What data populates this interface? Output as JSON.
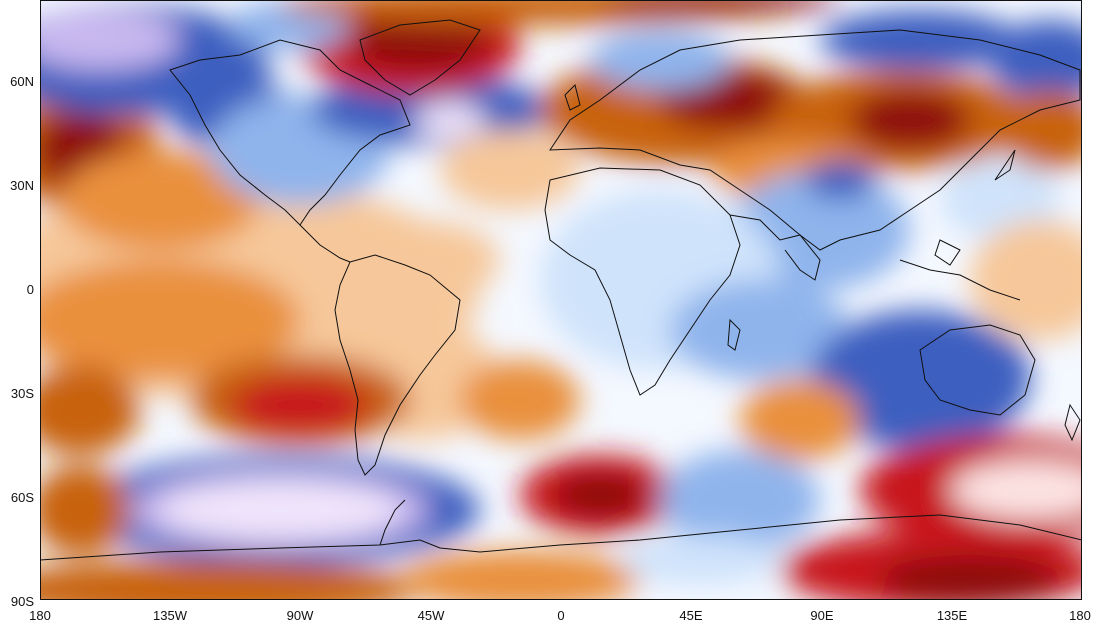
{
  "map": {
    "projection": "equirectangular",
    "lat_labels": [
      "60N",
      "30N",
      "0",
      "30S",
      "60S",
      "90S"
    ],
    "lon_labels": [
      "180",
      "135W",
      "90W",
      "45W",
      "0",
      "45E",
      "90E",
      "135E",
      "180"
    ],
    "colors": {
      "ocean_neutral": "#f4f8ff",
      "light_blue": "#cfe3fb",
      "blue": "#8fb4ec",
      "deep_blue": "#3d5fc0",
      "lavender": "#c8b8f0",
      "pale_violet": "#efe4fb",
      "light_orange": "#f6c79a",
      "orange": "#e9903c",
      "dark_orange": "#c8620e",
      "red": "#c8171a",
      "dark_red": "#8e0d0e",
      "pale_pink": "#fde3e3",
      "coastline": "#111111"
    }
  }
}
